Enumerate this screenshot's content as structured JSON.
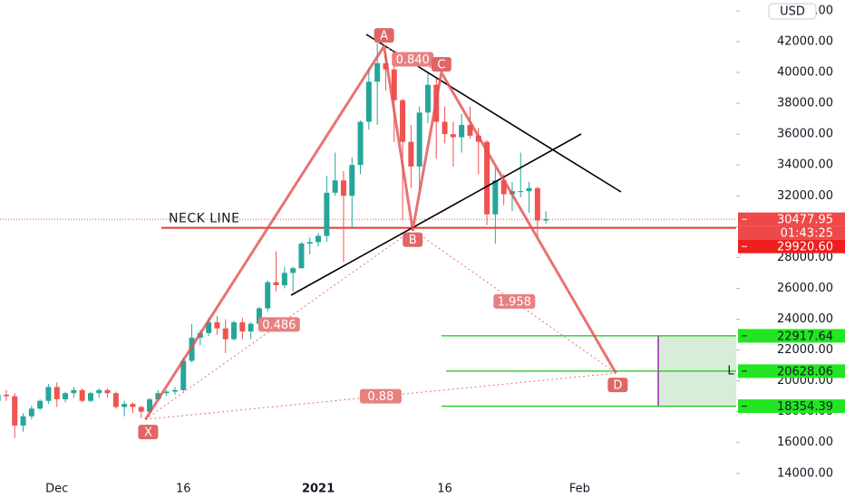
{
  "chart_data": {
    "type": "candlestick",
    "currency": "USD",
    "categories": [
      null,
      null,
      null,
      null,
      null,
      null,
      null,
      "Dec",
      null,
      null,
      null,
      null,
      null,
      null,
      null,
      null,
      null,
      null,
      null,
      null,
      null,
      null,
      "16",
      null,
      null,
      null,
      null,
      null,
      null,
      null,
      null,
      null,
      null,
      null,
      null,
      null,
      null,
      null,
      "2021",
      null,
      null,
      null,
      null,
      null,
      null,
      null,
      null,
      null,
      null,
      null,
      null,
      null,
      null,
      "16",
      null,
      null,
      null,
      null,
      null,
      null,
      null,
      null,
      null,
      null,
      null,
      null,
      null,
      null,
      null,
      "Feb",
      null,
      null,
      null,
      null,
      null,
      null,
      null,
      null,
      null,
      null,
      null,
      null,
      null,
      null,
      null,
      null,
      null,
      null
    ],
    "open": [
      18700,
      19100,
      19000,
      17100,
      17700,
      18200,
      18700,
      19600,
      18800,
      19200,
      19400,
      18700,
      19200,
      19400,
      19200,
      18300,
      18500,
      18300,
      18000,
      18800,
      19200,
      19300,
      19400,
      21300,
      22800,
      23100,
      23800,
      23400,
      22700,
      23800,
      23200,
      23700,
      24700,
      26400,
      26200,
      27000,
      27300,
      28900,
      29000,
      29400,
      32200,
      33000,
      32000,
      34000,
      36800,
      39400,
      40600,
      40200,
      38200,
      35500,
      33900,
      37400,
      39200,
      36800,
      36000,
      35800,
      36600,
      35900,
      35500,
      30800,
      33000,
      32100,
      32300,
      32300,
      32500,
      30400,
      null,
      null,
      null,
      null,
      null,
      null,
      null,
      null,
      null,
      null,
      null,
      null,
      null,
      null,
      null,
      null,
      null,
      null,
      null,
      null,
      null,
      null
    ],
    "high": [
      19400,
      19400,
      19200,
      17900,
      18400,
      18800,
      19800,
      19900,
      19300,
      19600,
      19500,
      19300,
      19500,
      19500,
      19300,
      18700,
      18600,
      18400,
      18900,
      19400,
      19400,
      19600,
      21500,
      23700,
      23300,
      24100,
      24200,
      24000,
      23900,
      24100,
      23800,
      24800,
      26500,
      28400,
      27400,
      27400,
      29000,
      29300,
      29600,
      33300,
      34800,
      33600,
      34500,
      36900,
      40300,
      41900,
      41300,
      41400,
      38300,
      36600,
      37800,
      40000,
      39600,
      37800,
      36800,
      37300,
      37800,
      36400,
      35600,
      33800,
      33400,
      32900,
      34800,
      32900,
      32600,
      31000,
      null,
      null,
      null,
      null,
      null,
      null,
      null,
      null,
      null,
      null,
      null,
      null,
      null,
      null,
      null,
      null,
      null,
      null,
      null,
      null,
      null,
      null
    ],
    "low": [
      18000,
      18700,
      16300,
      16700,
      17500,
      18100,
      18500,
      18300,
      18600,
      18900,
      18600,
      18600,
      18900,
      18900,
      18200,
      17700,
      17900,
      17600,
      17900,
      18700,
      19000,
      19100,
      19300,
      21200,
      22300,
      22900,
      23000,
      21800,
      22600,
      22700,
      22700,
      23400,
      24500,
      25800,
      26000,
      25800,
      27300,
      28200,
      28700,
      29000,
      32000,
      27700,
      29900,
      33400,
      36300,
      36600,
      38800,
      35500,
      30400,
      32500,
      32400,
      36700,
      34400,
      35400,
      33900,
      34800,
      35700,
      33400,
      30100,
      28900,
      31400,
      31000,
      31900,
      30900,
      29300,
      30200,
      null,
      null,
      null,
      null,
      null,
      null,
      null,
      null,
      null,
      null,
      null,
      null,
      null,
      null,
      null,
      null,
      null,
      null,
      null,
      null,
      null,
      null
    ],
    "close": [
      19100,
      19000,
      17100,
      17700,
      18200,
      18700,
      19600,
      18800,
      19200,
      19400,
      18700,
      19200,
      19400,
      19200,
      18300,
      18500,
      18300,
      18000,
      18800,
      19200,
      19300,
      19400,
      21300,
      22800,
      23100,
      23800,
      23400,
      22700,
      23800,
      23200,
      23700,
      24700,
      26400,
      26200,
      27000,
      27300,
      28900,
      29000,
      29400,
      32200,
      33000,
      32000,
      34000,
      36800,
      39400,
      40600,
      40200,
      38200,
      35500,
      33900,
      37400,
      39200,
      36800,
      36000,
      35800,
      36600,
      35900,
      35500,
      30800,
      33000,
      32100,
      32300,
      32300,
      32500,
      30400,
      30480,
      null,
      null,
      null,
      null,
      null,
      null,
      null,
      null,
      null,
      null,
      null,
      null,
      null,
      null,
      null,
      null,
      null,
      null,
      null,
      null,
      null,
      null
    ],
    "up_color": "#26a69a",
    "down_color": "#ef5350",
    "ylim": [
      12400,
      44700
    ],
    "yticks": [
      {
        "value": 14000,
        "label": "14000.00"
      },
      {
        "value": 16000,
        "label": "16000.00"
      },
      {
        "value": 18000,
        "label": "18000.00"
      },
      {
        "value": 20000,
        "label": "20000.00"
      },
      {
        "value": 22000,
        "label": "22000.00"
      },
      {
        "value": 24000,
        "label": "24000.00"
      },
      {
        "value": 26000,
        "label": "26000.00"
      },
      {
        "value": 28000,
        "label": "28000.00"
      },
      {
        "value": 30000,
        "label": "30000.00"
      },
      {
        "value": 32000,
        "label": "32000.00"
      },
      {
        "value": 34000,
        "label": "34000.00"
      },
      {
        "value": 36000,
        "label": "36000.00"
      },
      {
        "value": 38000,
        "label": "38000.00"
      },
      {
        "value": 40000,
        "label": "40000.00"
      },
      {
        "value": 42000,
        "label": "42000.00"
      },
      {
        "value": 44000,
        "label": "44000.00"
      }
    ],
    "grid": false,
    "current_price": {
      "value": 30477.95,
      "label": "30477.95",
      "countdown": "01:43:25"
    },
    "neckline": {
      "name": "NECK LINE",
      "value": 29920.6,
      "label": "29920.60"
    },
    "target_levels": [
      {
        "value": 22917.64,
        "label": "22917.64"
      },
      {
        "value": 20628.06,
        "label": "20628.06",
        "marker": "L"
      },
      {
        "value": 18354.39,
        "label": "18354.39"
      }
    ],
    "pattern": {
      "points": [
        {
          "label": "X",
          "price": 17500
        },
        {
          "label": "A",
          "price": 41700
        },
        {
          "label": "B",
          "price": 29800
        },
        {
          "label": "C",
          "price": 40000
        },
        {
          "label": "D",
          "price": 20500
        }
      ],
      "ratios": [
        "0.486",
        "0.840",
        "1.958",
        "0.88"
      ]
    }
  }
}
